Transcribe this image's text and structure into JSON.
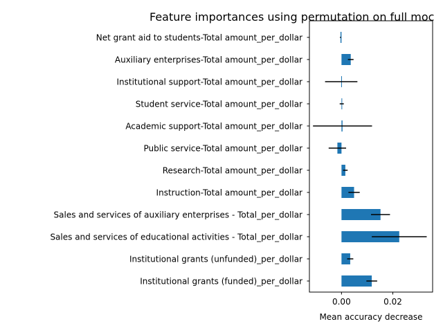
{
  "chart_data": {
    "type": "bar",
    "orientation": "horizontal",
    "title": "Feature importances using permutation on full moc",
    "xlabel": "Mean accuracy decrease",
    "ylabel": "",
    "xlim": [
      -0.0125,
      0.0355
    ],
    "x_ticks": [
      0.0,
      0.02
    ],
    "x_tick_labels": [
      "0.00",
      "0.02"
    ],
    "grid": false,
    "legend": "none",
    "bar_color": "#1f77b4",
    "error_bar_color": "#000000",
    "categories": [
      "Net grant aid to students-Total amount_per_dollar",
      "Auxiliary enterprises-Total amount_per_dollar",
      "Institutional support-Total amount_per_dollar",
      "Student service-Total amount_per_dollar",
      "Academic support-Total amount_per_dollar",
      "Public service-Total amount_per_dollar",
      "Research-Total amount_per_dollar",
      "Instruction-Total amount_per_dollar",
      "Sales and services of auxiliary enterprises - Total_per_dollar",
      "Sales and services of educational activities - Total_per_dollar",
      "Institutional grants (unfunded)_per_dollar",
      "Institutional grants (funded)_per_dollar"
    ],
    "values": [
      -0.0004,
      0.0036,
      -0.0001,
      0.0001,
      0.0004,
      -0.0016,
      0.0015,
      0.0049,
      0.0152,
      0.0225,
      0.0034,
      0.0118
    ],
    "errors": [
      0.0002,
      0.0011,
      0.0063,
      0.0008,
      0.0115,
      0.0034,
      0.0009,
      0.0022,
      0.0037,
      0.0107,
      0.0012,
      0.0021
    ]
  }
}
